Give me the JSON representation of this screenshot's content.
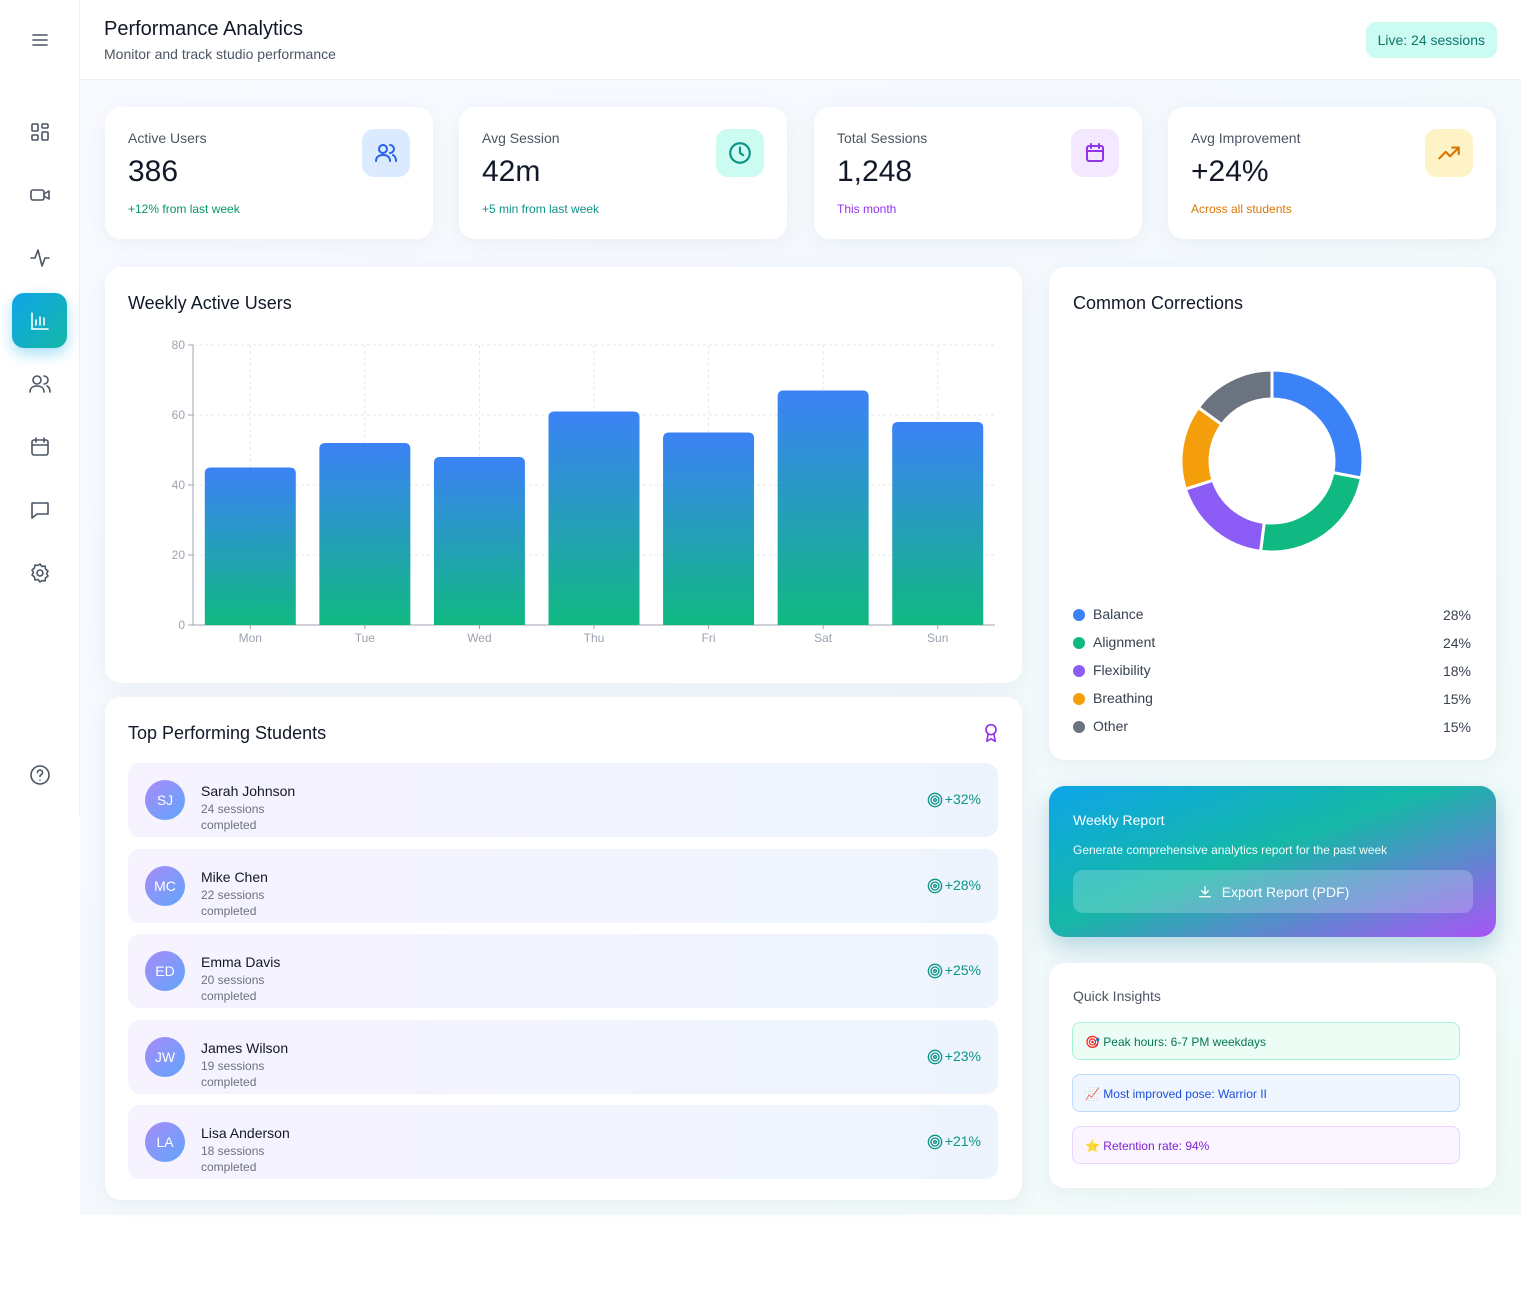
{
  "header": {
    "title": "Performance Analytics",
    "subtitle": "Monitor and track studio performance",
    "live": "Live: 24 sessions"
  },
  "stats": [
    {
      "label": "Active Users",
      "value": "386",
      "note": "+12% from last week"
    },
    {
      "label": "Avg Session",
      "value": "42m",
      "note": "+5 min from last week"
    },
    {
      "label": "Total Sessions",
      "value": "1,248",
      "note": "This month"
    },
    {
      "label": "Avg Improvement",
      "value": "+24%",
      "note": "Across all students"
    }
  ],
  "chart_data": [
    {
      "type": "bar",
      "title": "Weekly Active Users",
      "categories": [
        "Mon",
        "Tue",
        "Wed",
        "Thu",
        "Fri",
        "Sat",
        "Sun"
      ],
      "values": [
        45,
        52,
        48,
        61,
        55,
        67,
        58
      ],
      "gradient": [
        "#3b82f6",
        "#10b981"
      ],
      "ylim": [
        0,
        80
      ],
      "yticks": [
        0,
        20,
        40,
        60,
        80
      ],
      "grid": true
    },
    {
      "type": "pie",
      "title": "Common Corrections",
      "categories": [
        "Balance",
        "Alignment",
        "Flexibility",
        "Breathing",
        "Other"
      ],
      "values": [
        28,
        24,
        18,
        15,
        15
      ],
      "value_labels": [
        "28%",
        "24%",
        "18%",
        "15%",
        "15%"
      ],
      "colors": [
        "#3b82f6",
        "#10b981",
        "#8b5cf6",
        "#f59e0b",
        "#6b7280"
      ]
    }
  ],
  "students": {
    "title": "Top Performing Students",
    "rows": [
      {
        "initials": "SJ",
        "name": "Sarah Johnson",
        "sessions": "24 sessions completed",
        "improvement": "+32%"
      },
      {
        "initials": "MC",
        "name": "Mike Chen",
        "sessions": "22 sessions completed",
        "improvement": "+28%"
      },
      {
        "initials": "ED",
        "name": "Emma Davis",
        "sessions": "20 sessions completed",
        "improvement": "+25%"
      },
      {
        "initials": "JW",
        "name": "James Wilson",
        "sessions": "19 sessions completed",
        "improvement": "+23%"
      },
      {
        "initials": "LA",
        "name": "Lisa Anderson",
        "sessions": "18 sessions completed",
        "improvement": "+21%"
      }
    ]
  },
  "report": {
    "title": "Weekly Report",
    "description": "Generate comprehensive analytics report for the past week",
    "button": "Export Report (PDF)"
  },
  "insights": {
    "title": "Quick Insights",
    "items": [
      "🎯 Peak hours: 6-7 PM weekdays",
      "📈 Most improved pose: Warrior II",
      "⭐ Retention rate: 94%"
    ]
  }
}
